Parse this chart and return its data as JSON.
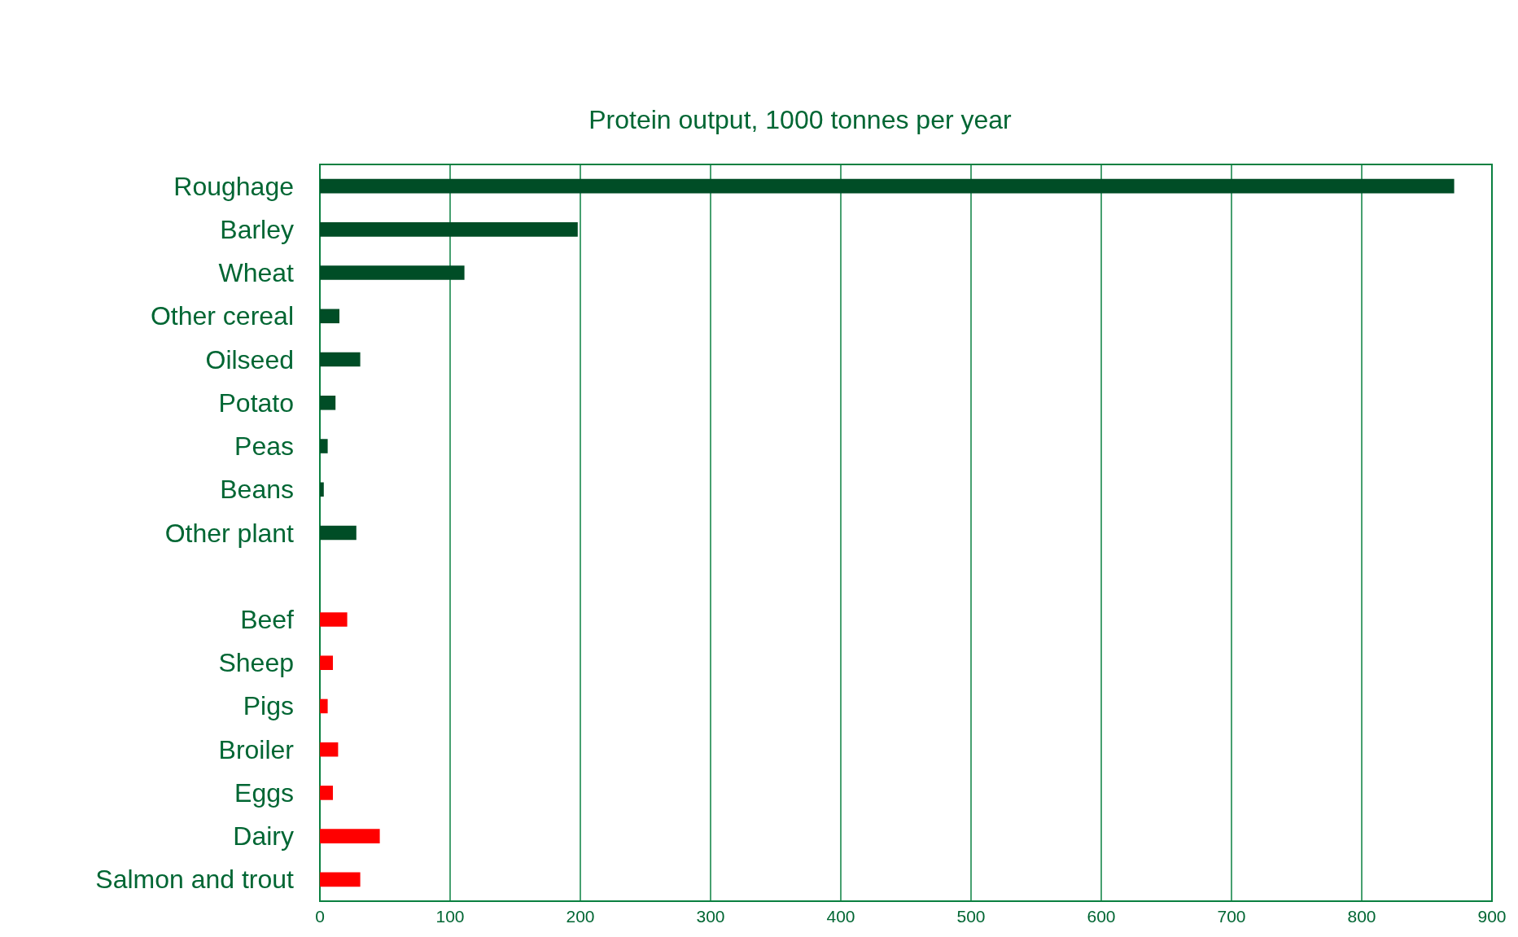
{
  "chart_data": {
    "type": "bar",
    "orientation": "horizontal",
    "title": "Protein output, 1000 tonnes per year",
    "categories": [
      "Roughage",
      "Barley",
      "Wheat",
      "Other cereal",
      "Oilseed",
      "Potato",
      "Peas",
      "Beans",
      "Other plant",
      null,
      "Beef",
      "Sheep",
      "Pigs",
      "Broiler",
      "Eggs",
      "Dairy",
      "Salmon and trout"
    ],
    "values": [
      871,
      198,
      111,
      15,
      31,
      12,
      6,
      3,
      28,
      null,
      21,
      10,
      6,
      14,
      10,
      46,
      31
    ],
    "colors": [
      "#004d26",
      "#004d26",
      "#004d26",
      "#004d26",
      "#004d26",
      "#004d26",
      "#004d26",
      "#004d26",
      "#004d26",
      "#004d26",
      "#ff0000",
      "#ff0000",
      "#ff0000",
      "#ff0000",
      "#ff0000",
      "#ff0000",
      "#ff0000"
    ],
    "xlim": [
      0,
      900
    ],
    "xticks": [
      0,
      100,
      200,
      300,
      400,
      500,
      600,
      700,
      800,
      900
    ],
    "grid": "x"
  }
}
